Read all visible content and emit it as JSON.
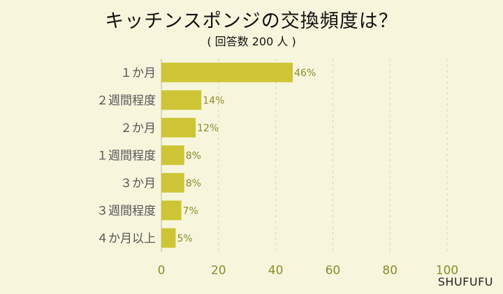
{
  "title": "キッチンスポンジの交換頻度は？",
  "subtitle": "( 回答数 200 人 )",
  "brand": "SHUFUFU",
  "colors": {
    "background": "#f7f6dd",
    "bar": "#cdc535",
    "tick_text": "#8a8a2a",
    "grid": "#d9d8b8",
    "category_text": "#555555"
  },
  "chart_data": {
    "type": "bar",
    "orientation": "horizontal",
    "categories": [
      "１か月",
      "２週間程度",
      "２か月",
      "１週間程度",
      "３か月",
      "３週間程度",
      "４か月以上"
    ],
    "values": [
      46,
      14,
      12,
      8,
      8,
      7,
      5
    ],
    "value_labels": [
      "46%",
      "14%",
      "12%",
      "8%",
      "8%",
      "7%",
      "5%"
    ],
    "x_ticks": [
      "0",
      "20",
      "40",
      "60",
      "80",
      "100"
    ],
    "x_tick_values": [
      0,
      20,
      40,
      60,
      80,
      100
    ],
    "xlim": [
      0,
      100
    ],
    "xlabel": "",
    "ylabel": "",
    "grid": true
  }
}
